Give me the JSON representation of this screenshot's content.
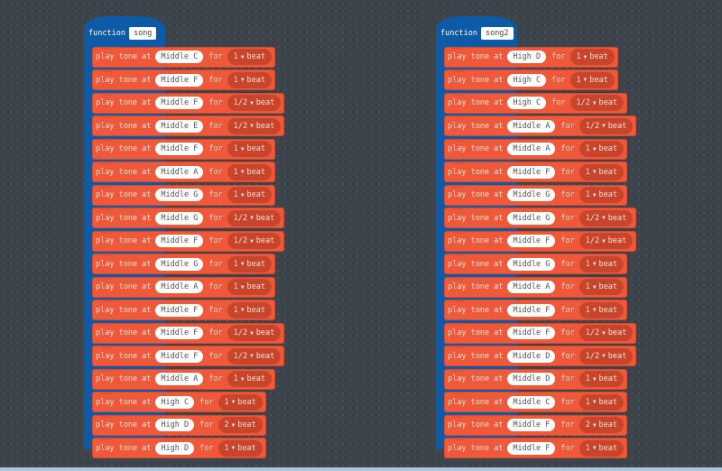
{
  "colors": {
    "function": "#0d5aa7",
    "music": "#f0583a",
    "background": "#3d434b"
  },
  "labels": {
    "function": "function",
    "play": "play tone at",
    "for": "for",
    "beat": "beat"
  },
  "functions": [
    {
      "name": "song",
      "blocks": [
        {
          "note": "Middle C",
          "beats": "1"
        },
        {
          "note": "Middle F",
          "beats": "1"
        },
        {
          "note": "Middle F",
          "beats": "1/2"
        },
        {
          "note": "Middle E",
          "beats": "1/2"
        },
        {
          "note": "Middle F",
          "beats": "1"
        },
        {
          "note": "Middle A",
          "beats": "1"
        },
        {
          "note": "Middle G",
          "beats": "1"
        },
        {
          "note": "Middle G",
          "beats": "1/2"
        },
        {
          "note": "Middle F",
          "beats": "1/2"
        },
        {
          "note": "Middle G",
          "beats": "1"
        },
        {
          "note": "Middle A",
          "beats": "1"
        },
        {
          "note": "Middle F",
          "beats": "1"
        },
        {
          "note": "Middle F",
          "beats": "1/2"
        },
        {
          "note": "Middle F",
          "beats": "1/2"
        },
        {
          "note": "Middle A",
          "beats": "1"
        },
        {
          "note": "High C",
          "beats": "1"
        },
        {
          "note": "High D",
          "beats": "2"
        },
        {
          "note": "High D",
          "beats": "1"
        }
      ]
    },
    {
      "name": "song2",
      "blocks": [
        {
          "note": "High D",
          "beats": "1"
        },
        {
          "note": "High C",
          "beats": "1"
        },
        {
          "note": "High C",
          "beats": "1/2"
        },
        {
          "note": "Middle A",
          "beats": "1/2"
        },
        {
          "note": "Middle A",
          "beats": "1"
        },
        {
          "note": "Middle F",
          "beats": "1"
        },
        {
          "note": "Middle G",
          "beats": "1"
        },
        {
          "note": "Middle G",
          "beats": "1/2"
        },
        {
          "note": "Middle F",
          "beats": "1/2"
        },
        {
          "note": "Middle G",
          "beats": "1"
        },
        {
          "note": "Middle A",
          "beats": "1"
        },
        {
          "note": "Middle F",
          "beats": "1"
        },
        {
          "note": "Middle F",
          "beats": "1/2"
        },
        {
          "note": "Middle D",
          "beats": "1/2"
        },
        {
          "note": "Middle D",
          "beats": "1"
        },
        {
          "note": "Middle C",
          "beats": "1"
        },
        {
          "note": "Middle F",
          "beats": "2"
        },
        {
          "note": "Middle F",
          "beats": "1"
        }
      ]
    }
  ]
}
